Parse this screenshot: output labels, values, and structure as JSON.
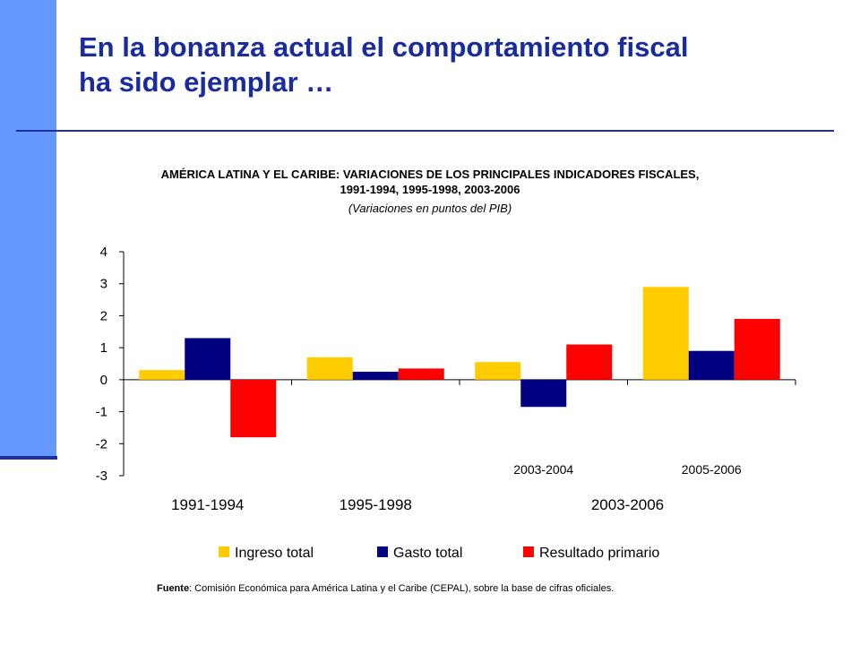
{
  "slide": {
    "title_line1": "En la bonanza actual el comportamiento fiscal",
    "title_line2": "ha sido ejemplar …",
    "source_label": "Fuente",
    "source_text": ": Comisión Económica para América Latina y el Caribe (CEPAL), sobre la base de cifras oficiales."
  },
  "colors": {
    "accent_bar": "#6699ff",
    "title": "#1a2b9c",
    "rule": "#1f2f9f"
  },
  "chart_data": {
    "type": "bar",
    "title_line1": "AMÉRICA LATINA Y EL CARIBE: VARIACIONES DE LOS PRINCIPALES INDICADORES FISCALES,",
    "title_line2": "1991-1994, 1995-1998, 2003-2006",
    "subtitle": "(Variaciones en puntos del PIB)",
    "categories": [
      "1991-1994",
      "1995-1998",
      "2003-2004",
      "2005-2006"
    ],
    "category_groups": [
      {
        "label": "1991-1994",
        "members": [
          "1991-1994"
        ]
      },
      {
        "label": "1995-1998",
        "members": [
          "1995-1998"
        ]
      },
      {
        "label": "2003-2006",
        "members": [
          "2003-2004",
          "2005-2006"
        ]
      }
    ],
    "series": [
      {
        "name": "Ingreso total",
        "color": "#ffcc00",
        "values": [
          0.3,
          0.7,
          0.55,
          2.9
        ]
      },
      {
        "name": "Gasto total",
        "color": "#000080",
        "values": [
          1.3,
          0.25,
          -0.85,
          0.9
        ]
      },
      {
        "name": "Resultado primario",
        "color": "#ff0000",
        "values": [
          -1.8,
          0.35,
          1.1,
          1.9
        ]
      }
    ],
    "ylim": [
      -3,
      4
    ],
    "yticks": [
      4,
      3,
      2,
      1,
      0,
      -1,
      -2,
      -3
    ],
    "grid": false,
    "legend_position": "bottom"
  }
}
